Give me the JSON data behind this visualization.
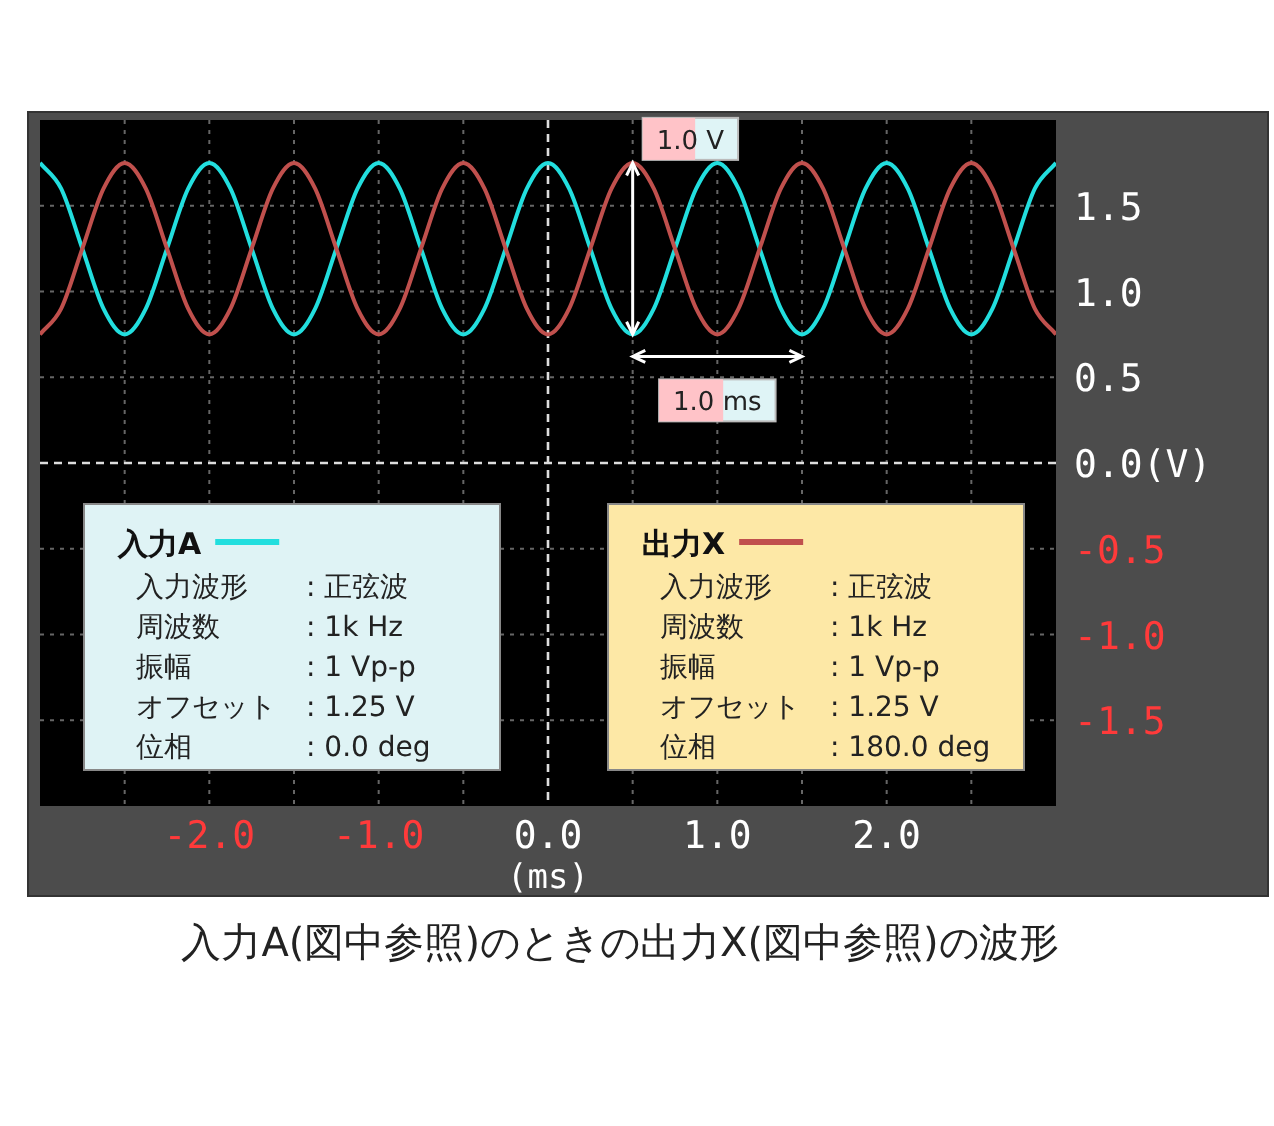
{
  "chart_data": {
    "type": "line",
    "title": "入力A(図中参照)のときの出力X(図中参照)の波形",
    "xlabel": "(ms)",
    "x": [
      -3,
      -2.875,
      -2.75,
      -2.625,
      -2.5,
      -2.375,
      -2.25,
      -2.125,
      -2,
      -1.875,
      -1.75,
      -1.625,
      -1.5,
      -1.375,
      -1.25,
      -1.125,
      -1,
      -0.875,
      -0.75,
      -0.625,
      -0.5,
      -0.375,
      -0.25,
      -0.125,
      0,
      0.125,
      0.25,
      0.375,
      0.5,
      0.625,
      0.75,
      0.875,
      1,
      1.125,
      1.25,
      1.375,
      1.5,
      1.625,
      1.75,
      1.875,
      2,
      2.125,
      2.25,
      2.375,
      2.5,
      2.625,
      2.75,
      2.875,
      3
    ],
    "series": [
      {
        "name": "入力A",
        "color": "#22dede",
        "values": [
          1.75,
          1.6,
          1.25,
          0.9,
          0.75,
          0.9,
          1.25,
          1.6,
          1.75,
          1.6,
          1.25,
          0.9,
          0.75,
          0.9,
          1.25,
          1.6,
          1.75,
          1.6,
          1.25,
          0.9,
          0.75,
          0.9,
          1.25,
          1.6,
          1.75,
          1.6,
          1.25,
          0.9,
          0.75,
          0.9,
          1.25,
          1.6,
          1.75,
          1.6,
          1.25,
          0.9,
          0.75,
          0.9,
          1.25,
          1.6,
          1.75,
          1.6,
          1.25,
          0.9,
          0.75,
          0.9,
          1.25,
          1.6,
          1.75
        ]
      },
      {
        "name": "出力X",
        "color": "#c0504d",
        "values": [
          0.75,
          0.9,
          1.25,
          1.6,
          1.75,
          1.6,
          1.25,
          0.9,
          0.75,
          0.9,
          1.25,
          1.6,
          1.75,
          1.6,
          1.25,
          0.9,
          0.75,
          0.9,
          1.25,
          1.6,
          1.75,
          1.6,
          1.25,
          0.9,
          0.75,
          0.9,
          1.25,
          1.6,
          1.75,
          1.6,
          1.25,
          0.9,
          0.75,
          0.9,
          1.25,
          1.6,
          1.75,
          1.6,
          1.25,
          0.9,
          0.75,
          0.9,
          1.25,
          1.6,
          1.75,
          1.6,
          1.25,
          0.9,
          0.75
        ]
      }
    ],
    "xlim": [
      -3,
      3
    ],
    "ylim": [
      -2,
      2
    ],
    "xticks": [
      {
        "value": -2.5,
        "label": null
      },
      {
        "value": -2,
        "label": "-2.0"
      },
      {
        "value": -1.5,
        "label": null
      },
      {
        "value": -1,
        "label": "-1.0"
      },
      {
        "value": -0.5,
        "label": null
      },
      {
        "value": 0,
        "label": "0.0"
      },
      {
        "value": 0.5,
        "label": null
      },
      {
        "value": 1,
        "label": "1.0"
      },
      {
        "value": 1.5,
        "label": null
      },
      {
        "value": 2,
        "label": "2.0"
      },
      {
        "value": 2.5,
        "label": null
      }
    ],
    "yticks": [
      {
        "value": -1.5,
        "label": "-1.5"
      },
      {
        "value": -1,
        "label": "-1.0"
      },
      {
        "value": -0.5,
        "label": "-0.5"
      },
      {
        "value": 0,
        "label": "0.0(V)"
      },
      {
        "value": 0.5,
        "label": "0.5"
      },
      {
        "value": 1,
        "label": "1.0"
      },
      {
        "value": 1.5,
        "label": "1.5"
      }
    ],
    "grid": true,
    "legend": "bottom",
    "line_style": "solid",
    "annotations": [
      {
        "text": "1.0 V",
        "x": 0.5,
        "y": 1.75
      },
      "1.0 ms",
      "入力波形 : 正弦波",
      "周波数 : 1k Hz",
      "振幅 : 1 Vp-p",
      "オフセット : 1.25 V",
      "位相 : 0.0 deg",
      "入力波形 : 正弦波",
      "周波数 : 1k Hz",
      "振幅 : 1 Vp-p",
      "オフセット : 1.25 V",
      "位相 : 180.0 deg"
    ]
  }
}
